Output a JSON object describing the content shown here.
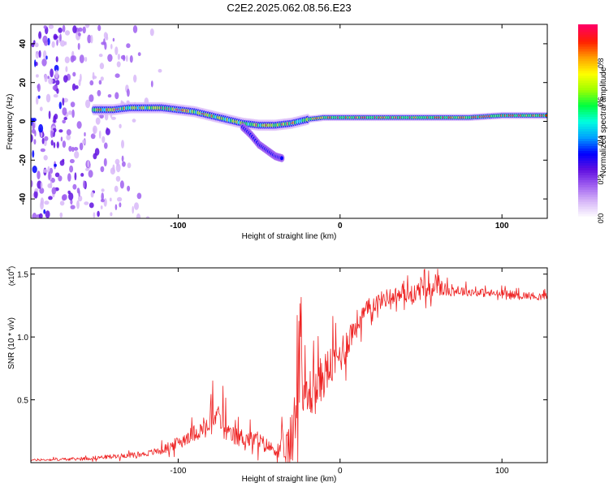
{
  "figure_title": "C2E2.2025.062.08.56.E23",
  "chart_data": [
    {
      "type": "heatmap",
      "id": "spectrogram",
      "title": "C2E2.2025.062.08.56.E23",
      "xlabel": "Height of straight line (km)",
      "ylabel": "Frequency (Hz)",
      "xlim": [
        -191,
        128
      ],
      "ylim": [
        -50,
        50
      ],
      "x_ticks": [
        -100,
        0,
        100
      ],
      "y_ticks": [
        -40,
        -20,
        0,
        20,
        40
      ],
      "colorbar": {
        "label": "Normalized spectral amplitude",
        "range": [
          0,
          1
        ],
        "ticks": [
          0.0,
          0.2,
          0.4,
          0.6,
          0.8
        ],
        "tick_labels": [
          "0.0",
          "0.2",
          "0.4",
          "0.6",
          "0.8"
        ],
        "colormap": [
          "#ffffff",
          "#d8b8f8",
          "#a060f0",
          "#6010e0",
          "#0000ff",
          "#00a0ff",
          "#00ffe0",
          "#00ff40",
          "#a0ff00",
          "#ffff00",
          "#ffa000",
          "#ff2000",
          "#ff0060"
        ]
      },
      "ridge": {
        "description_values": "dominant frequency (Hz) vs height (km)",
        "x": [
          -150,
          -140,
          -130,
          -120,
          -110,
          -100,
          -90,
          -80,
          -70,
          -60,
          -50,
          -40,
          -30,
          -20,
          -10,
          0,
          10,
          20,
          40,
          60,
          80,
          100,
          128
        ],
        "y": [
          6,
          6,
          7,
          7,
          7,
          6,
          5,
          3,
          1,
          -1,
          -2,
          -2,
          -1,
          1,
          2,
          2,
          2,
          2,
          2,
          2,
          2,
          3,
          3
        ]
      },
      "branch": {
        "x": [
          -60,
          -55,
          -50,
          -45,
          -40,
          -36
        ],
        "y": [
          -3,
          -7,
          -12,
          -15,
          -18,
          -19
        ]
      },
      "noise_region_km": [
        -191,
        -120
      ]
    },
    {
      "type": "line",
      "id": "snr",
      "xlabel": "Height of straight line (km)",
      "ylabel": "SNR (10 * v/v)",
      "ylabel_multiplier": "(x10",
      "ylabel_multiplier_exp": "4",
      "multiplier_close": ")",
      "xlim": [
        -191,
        128
      ],
      "ylim": [
        0,
        1.55
      ],
      "x_ticks": [
        -100,
        0,
        100
      ],
      "y_ticks": [
        0.5,
        1.0,
        1.5
      ],
      "y_tick_labels": [
        "0.5",
        "1.0",
        "1.5"
      ],
      "color": "#ee2222",
      "envelope": {
        "x": [
          -191,
          -160,
          -140,
          -120,
          -110,
          -100,
          -90,
          -80,
          -76,
          -70,
          -60,
          -50,
          -40,
          -35,
          -30,
          -26,
          -24,
          -22,
          -20,
          -15,
          -10,
          -5,
          0,
          5,
          10,
          15,
          20,
          30,
          40,
          50,
          60,
          80,
          100,
          128
        ],
        "y": [
          0.02,
          0.03,
          0.05,
          0.07,
          0.1,
          0.16,
          0.24,
          0.28,
          0.4,
          0.22,
          0.2,
          0.17,
          0.1,
          0.08,
          0.15,
          0.55,
          0.7,
          0.6,
          0.55,
          0.58,
          0.7,
          0.78,
          0.85,
          0.98,
          1.1,
          1.18,
          1.26,
          1.32,
          1.34,
          1.36,
          1.38,
          1.36,
          1.34,
          1.32
        ]
      },
      "noise_amp": {
        "x": [
          -191,
          -120,
          -100,
          -80,
          -50,
          -40,
          -30,
          -20,
          0,
          20,
          40,
          60,
          80,
          128
        ],
        "y": [
          0.01,
          0.03,
          0.07,
          0.12,
          0.1,
          0.06,
          0.35,
          0.3,
          0.22,
          0.1,
          0.1,
          0.08,
          0.05,
          0.04
        ]
      }
    }
  ]
}
